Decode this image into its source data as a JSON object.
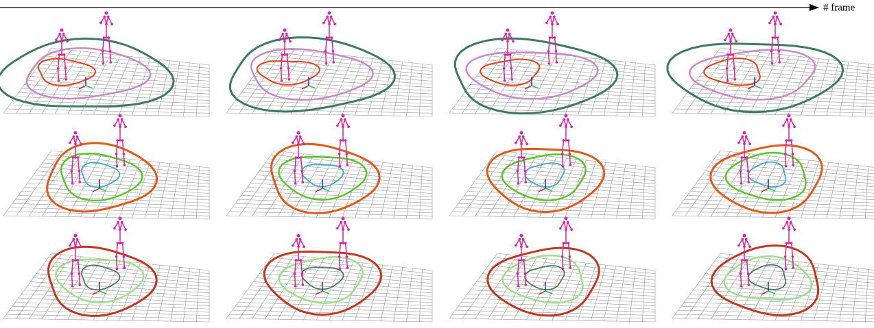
{
  "axis_label": "# frame"
}
